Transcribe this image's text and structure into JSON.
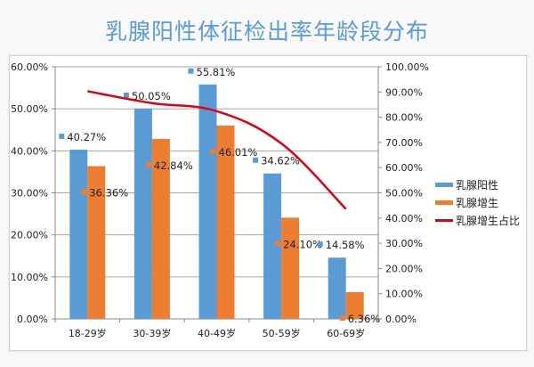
{
  "title": "乳腺阳性体征检出率年龄段分布",
  "legend": [
    {
      "label": "乳腺阳性",
      "color": "#5b9bd5",
      "type": "bar"
    },
    {
      "label": "乳腺增生",
      "color": "#ed7d31",
      "type": "bar"
    },
    {
      "label": "乳腺增生占比",
      "color": "#e00010",
      "type": "line"
    }
  ],
  "left_axis_ticks": [
    "0.00%",
    "10.00%",
    "20.00%",
    "30.00%",
    "40.00%",
    "50.00%",
    "60.00%"
  ],
  "right_axis_ticks": [
    "0.00%",
    "10.00%",
    "20.00%",
    "30.00%",
    "40.00%",
    "50.00%",
    "60.00%",
    "70.00%",
    "80.00%",
    "90.00%",
    "100.00%"
  ],
  "categories": [
    "18-29岁",
    "30-39岁",
    "40-49岁",
    "50-59岁",
    "60-69岁"
  ],
  "data_labels": {
    "positive": [
      "40.27%",
      "50.05%",
      "55.81%",
      "34.62%",
      "14.58%"
    ],
    "hyperplasia": [
      "36.36%",
      "42.84%",
      "46.01%",
      "24.10%",
      "6.36%"
    ]
  },
  "chart_data": {
    "type": "bar",
    "title": "乳腺阳性体征检出率年龄段分布",
    "categories": [
      "18-29岁",
      "30-39岁",
      "40-49岁",
      "50-59岁",
      "60-69岁"
    ],
    "series": [
      {
        "name": "乳腺阳性",
        "type": "bar",
        "axis": "left",
        "color": "#5b9bd5",
        "values": [
          40.27,
          50.05,
          55.81,
          34.62,
          14.58
        ]
      },
      {
        "name": "乳腺增生",
        "type": "bar",
        "axis": "left",
        "color": "#ed7d31",
        "values": [
          36.36,
          42.84,
          46.01,
          24.1,
          6.36
        ]
      },
      {
        "name": "乳腺增生占比",
        "type": "line",
        "axis": "right",
        "smooth": true,
        "color": "#e00010",
        "values": [
          90.3,
          85.6,
          82.4,
          69.6,
          43.6
        ]
      }
    ],
    "xlabel": "",
    "ylabel": "",
    "ylim": [
      0,
      60
    ],
    "y2lim": [
      0,
      100
    ],
    "y_tick_format": "0.00%",
    "grid": true,
    "legend_position": "right"
  }
}
